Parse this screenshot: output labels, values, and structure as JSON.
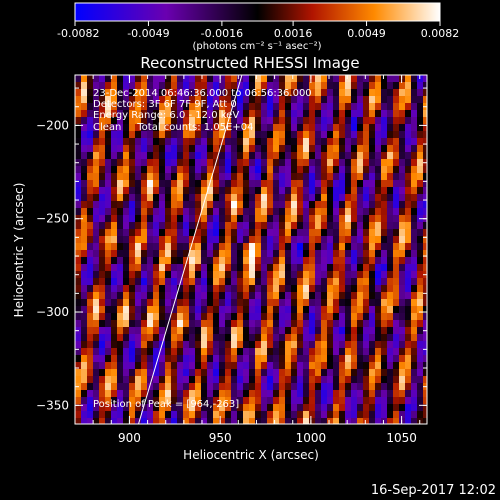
{
  "chart_data": {
    "type": "heatmap",
    "title": "Reconstructed RHESSI Image",
    "xlabel": "Heliocentric X (arcsec)",
    "ylabel": "Heliocentric Y (arcsec)",
    "xlim": [
      870,
      1064
    ],
    "ylim": [
      -360,
      -173
    ],
    "x_ticks": [
      900,
      950,
      1000,
      1050
    ],
    "x_tick_labels": [
      "900",
      "950",
      "1000",
      "1050"
    ],
    "y_ticks": [
      -200,
      -250,
      -300,
      -350
    ],
    "y_tick_labels": [
      "-200",
      "-250",
      "-300",
      "-350"
    ],
    "colorbar": {
      "min": -0.0082,
      "max": 0.0082,
      "ticks": [
        -0.0082,
        -0.0049,
        -0.0016,
        0.0016,
        0.0049,
        0.0082
      ],
      "tick_labels": [
        "-0.0082",
        "-0.0049",
        "-0.0016",
        "0.0016",
        "0.0049",
        "0.0082"
      ],
      "unit_label": "(photons cm⁻² s⁻¹ asec⁻²)",
      "colors": [
        "#0000ff",
        "#6a00b0",
        "#000000",
        "#b01400",
        "#ff8a00",
        "#ffffff"
      ]
    },
    "annotations": [
      "23-Dec-2014 06:46:36.000 to 06:56:36.000",
      "Detectors: 3F 6F 7F 9F, Att 0",
      "Energy Range: 6.0 - 12.0 keV",
      "Clean     Total counts: 1.05E+04"
    ],
    "peak_label": "Position of Peak = [964,-263]",
    "peak_position": [
      964,
      -263
    ],
    "limb_line": [
      [
        905,
        -360
      ],
      [
        962,
        -173
      ]
    ],
    "limb_color": "#ffffff",
    "grid": false
  },
  "footer": {
    "timestamp": "16-Sep-2017 12:02"
  }
}
